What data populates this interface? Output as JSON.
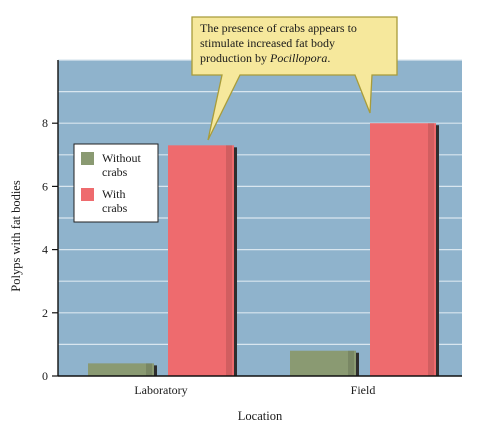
{
  "chart_data": {
    "type": "bar",
    "categories": [
      "Laboratory",
      "Field"
    ],
    "series": [
      {
        "name": "Without crabs",
        "values": [
          0.4,
          0.8
        ],
        "color": "#8a9a72"
      },
      {
        "name": "With crabs",
        "values": [
          7.3,
          8.0
        ],
        "color": "#ee6b6e"
      }
    ],
    "xlabel": "Location",
    "ylabel": "Polyps with fat bodies",
    "ylim": [
      0,
      10
    ],
    "yticks": [
      0,
      2,
      4,
      6,
      8
    ],
    "grid": true,
    "legend": {
      "placement": "upper-left",
      "entries": [
        [
          "Without",
          "crabs"
        ],
        [
          "With",
          "crabs"
        ]
      ]
    },
    "annotation": {
      "lines": [
        "The presence of crabs appears to",
        "stimulate increased fat body",
        "production by "
      ],
      "italic_word": "Pocillopora",
      "tail": "."
    },
    "colors": {
      "plot_background": "#8fb3cc",
      "gridline": "#d9e6ef",
      "callout_fill": "#f6e89c",
      "callout_stroke": "#a89c3a",
      "bar_shadow": "#2e2e2e"
    }
  }
}
